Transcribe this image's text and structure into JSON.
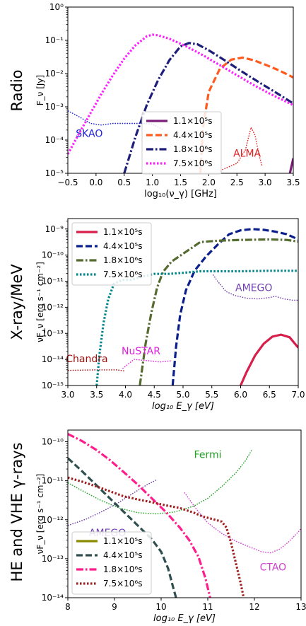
{
  "chart_data": [
    {
      "type": "line",
      "panel_label": "Radio",
      "xlabel": "log₁₀(ν_γ) [GHz]",
      "ylabel": "F_ν [Jy]",
      "xlim": [
        -0.5,
        3.5
      ],
      "ylim_log10": [
        -5,
        0
      ],
      "yscale": "log",
      "x_ticks": [
        -0.5,
        0.0,
        0.5,
        1.0,
        1.5,
        2.0,
        2.5,
        3.0,
        3.5
      ],
      "x_tick_labels": [
        "−0.5",
        "0.0",
        "0.5",
        "1.0",
        "1.5",
        "2.0",
        "2.5",
        "3.0",
        "3.5"
      ],
      "y_ticks_log10": [
        -5,
        -4,
        -3,
        -2,
        -1,
        0
      ],
      "y_tick_labels": [
        "10⁻⁵",
        "10⁻⁴",
        "10⁻³",
        "10⁻²",
        "10⁻¹",
        "10⁰"
      ],
      "legend_placement": "lower-center",
      "series": [
        {
          "name": "1.1×10⁵s",
          "color": "#7b1e7a",
          "dash": "solid",
          "points": [
            [
              3.44,
              -5.0
            ],
            [
              3.5,
              -4.55
            ]
          ]
        },
        {
          "name": "4.4×10⁵s",
          "color": "#ff5a1f",
          "dash": "dashed",
          "points": [
            [
              1.85,
              -5.0
            ],
            [
              1.9,
              -3.6
            ],
            [
              2.0,
              -2.55
            ],
            [
              2.2,
              -1.85
            ],
            [
              2.4,
              -1.58
            ],
            [
              2.6,
              -1.52
            ],
            [
              2.8,
              -1.6
            ],
            [
              3.0,
              -1.73
            ],
            [
              3.2,
              -1.87
            ],
            [
              3.4,
              -2.03
            ],
            [
              3.5,
              -2.12
            ]
          ]
        },
        {
          "name": "1.8×10⁶s",
          "color": "#1e1e7a",
          "dash": "dashdot",
          "points": [
            [
              0.5,
              -5.0
            ],
            [
              0.7,
              -3.9
            ],
            [
              0.9,
              -2.95
            ],
            [
              1.1,
              -2.2
            ],
            [
              1.3,
              -1.6
            ],
            [
              1.5,
              -1.18
            ],
            [
              1.65,
              -1.08
            ],
            [
              1.8,
              -1.12
            ],
            [
              2.0,
              -1.3
            ],
            [
              2.3,
              -1.62
            ],
            [
              2.6,
              -1.95
            ],
            [
              2.9,
              -2.27
            ],
            [
              3.2,
              -2.58
            ],
            [
              3.5,
              -2.9
            ]
          ]
        },
        {
          "name": "7.5×10⁶s",
          "color": "#ff1eff",
          "dash": "dotted",
          "points": [
            [
              -0.5,
              -4.42
            ],
            [
              -0.3,
              -3.8
            ],
            [
              -0.1,
              -3.2
            ],
            [
              0.1,
              -2.6
            ],
            [
              0.3,
              -2.05
            ],
            [
              0.5,
              -1.55
            ],
            [
              0.7,
              -1.15
            ],
            [
              0.9,
              -0.88
            ],
            [
              1.0,
              -0.83
            ],
            [
              1.1,
              -0.85
            ],
            [
              1.3,
              -0.95
            ],
            [
              1.6,
              -1.18
            ],
            [
              1.9,
              -1.45
            ],
            [
              2.2,
              -1.75
            ],
            [
              2.5,
              -2.05
            ],
            [
              2.8,
              -2.35
            ],
            [
              3.1,
              -2.62
            ],
            [
              3.5,
              -2.95
            ]
          ]
        }
      ],
      "instruments": [
        {
          "name": "SKAO",
          "color": "#2020e0",
          "points": [
            [
              -0.5,
              -3.12
            ],
            [
              -0.3,
              -3.3
            ],
            [
              -0.1,
              -3.5
            ],
            [
              0.1,
              -3.55
            ],
            [
              0.3,
              -3.5
            ],
            [
              0.5,
              -3.5
            ],
            [
              0.8,
              -3.5
            ],
            [
              1.0,
              -3.52
            ],
            [
              1.2,
              -3.7
            ]
          ],
          "label_pos": [
            -0.12,
            -3.9
          ]
        },
        {
          "name": "ALMA",
          "color": "#e02020",
          "points": [
            [
              2.2,
              -4.92
            ],
            [
              2.5,
              -4.7
            ],
            [
              2.65,
              -4.3
            ],
            [
              2.75,
              -3.62
            ],
            [
              2.82,
              -3.85
            ],
            [
              2.9,
              -4.5
            ],
            [
              2.95,
              -4.8
            ]
          ],
          "label_pos": [
            2.68,
            -4.5
          ]
        }
      ]
    },
    {
      "type": "line",
      "panel_label": "X-ray/MeV",
      "xlabel": "log₁₀ E_γ [eV]",
      "ylabel": "νF_ν [erg s⁻¹ cm⁻²]",
      "xlim": [
        3.0,
        7.0
      ],
      "ylim_log10": [
        -15,
        -8.6
      ],
      "yscale": "log",
      "x_ticks": [
        3.0,
        3.5,
        4.0,
        4.5,
        5.0,
        5.5,
        6.0,
        6.5,
        7.0
      ],
      "x_tick_labels": [
        "3.0",
        "3.5",
        "4.0",
        "4.5",
        "5.0",
        "5.5",
        "6.0",
        "6.5",
        "7.0"
      ],
      "y_ticks_log10": [
        -15,
        -14,
        -13,
        -12,
        -11,
        -10,
        -9
      ],
      "y_tick_labels": [
        "10⁻¹⁵",
        "10⁻¹⁴",
        "10⁻¹³",
        "10⁻¹²",
        "10⁻¹¹",
        "10⁻¹⁰",
        "10⁻⁹"
      ],
      "legend_placement": "top-left",
      "series": [
        {
          "name": "1.1×10⁵s",
          "color": "#d81e4a",
          "dash": "solid",
          "points": [
            [
              6.0,
              -15.0
            ],
            [
              6.1,
              -14.5
            ],
            [
              6.25,
              -13.85
            ],
            [
              6.4,
              -13.4
            ],
            [
              6.55,
              -13.13
            ],
            [
              6.7,
              -13.05
            ],
            [
              6.85,
              -13.15
            ],
            [
              7.0,
              -13.55
            ]
          ]
        },
        {
          "name": "4.4×10⁵s",
          "color": "#0a1e8c",
          "dash": "dashed",
          "points": [
            [
              4.82,
              -15.0
            ],
            [
              4.88,
              -13.5
            ],
            [
              4.95,
              -12.3
            ],
            [
              5.05,
              -11.35
            ],
            [
              5.2,
              -10.6
            ],
            [
              5.4,
              -10.05
            ],
            [
              5.6,
              -9.6
            ],
            [
              5.8,
              -9.2
            ],
            [
              6.0,
              -9.05
            ],
            [
              6.2,
              -9.0
            ],
            [
              6.4,
              -9.03
            ],
            [
              6.6,
              -9.1
            ],
            [
              6.8,
              -9.2
            ],
            [
              7.0,
              -9.4
            ]
          ]
        },
        {
          "name": "1.8×10⁶s",
          "color": "#556b2f",
          "dash": "dashdot",
          "points": [
            [
              4.25,
              -15.0
            ],
            [
              4.35,
              -13.4
            ],
            [
              4.45,
              -12.2
            ],
            [
              4.55,
              -11.25
            ],
            [
              4.65,
              -10.65
            ],
            [
              4.8,
              -10.25
            ],
            [
              5.0,
              -9.95
            ],
            [
              5.3,
              -9.5
            ],
            [
              5.6,
              -9.45
            ],
            [
              6.0,
              -9.42
            ],
            [
              6.5,
              -9.4
            ],
            [
              6.8,
              -9.42
            ],
            [
              7.0,
              -9.48
            ]
          ]
        },
        {
          "name": "7.5×10⁶s",
          "color": "#00868b",
          "dash": "dotted",
          "points": [
            [
              3.5,
              -15.0
            ],
            [
              3.55,
              -13.8
            ],
            [
              3.62,
              -12.6
            ],
            [
              3.7,
              -11.7
            ],
            [
              3.8,
              -11.1
            ],
            [
              3.95,
              -10.95
            ],
            [
              4.1,
              -10.95
            ],
            [
              4.3,
              -10.82
            ],
            [
              4.5,
              -10.72
            ],
            [
              4.75,
              -10.72
            ],
            [
              5.0,
              -10.68
            ],
            [
              5.3,
              -10.62
            ],
            [
              5.6,
              -10.62
            ],
            [
              6.0,
              -10.62
            ],
            [
              6.5,
              -10.6
            ],
            [
              7.0,
              -10.6
            ]
          ]
        }
      ],
      "instruments": [
        {
          "name": "AMEGO",
          "color": "#7040b0",
          "points": [
            [
              5.52,
              -10.75
            ],
            [
              5.6,
              -11.0
            ],
            [
              5.75,
              -11.4
            ],
            [
              5.9,
              -11.55
            ],
            [
              6.1,
              -11.65
            ],
            [
              6.3,
              -11.68
            ],
            [
              6.5,
              -11.63
            ],
            [
              6.6,
              -11.58
            ],
            [
              6.75,
              -11.68
            ],
            [
              6.9,
              -11.73
            ],
            [
              7.0,
              -11.73
            ]
          ],
          "label_pos": [
            6.23,
            -11.38
          ]
        },
        {
          "name": "NuSTAR",
          "color": "#e020e0",
          "points": [
            [
              3.95,
              -14.35
            ],
            [
              4.15,
              -14.0
            ],
            [
              4.4,
              -14.05
            ],
            [
              4.6,
              -14.1
            ],
            [
              4.8,
              -14.05
            ]
          ],
          "label_pos": [
            4.27,
            -13.8
          ]
        },
        {
          "name": "Chandra",
          "color": "#a01010",
          "points": [
            [
              3.0,
              -14.42
            ],
            [
              3.5,
              -14.4
            ],
            [
              3.85,
              -14.4
            ],
            [
              4.0,
              -14.45
            ]
          ],
          "label_pos": [
            3.33,
            -14.1
          ]
        }
      ]
    },
    {
      "type": "line",
      "panel_label": "HE and VHE γ-rays",
      "xlabel": "log₁₀ E_γ [eV]",
      "ylabel": "νF_ν [erg s⁻¹ cm⁻²]",
      "xlim": [
        8,
        13
      ],
      "ylim_log10": [
        -14,
        -9.7
      ],
      "yscale": "log",
      "x_ticks": [
        8,
        9,
        10,
        11,
        12,
        13
      ],
      "x_tick_labels": [
        "8",
        "9",
        "10",
        "11",
        "12",
        "13"
      ],
      "y_ticks_log10": [
        -14,
        -13,
        -12,
        -11,
        -10
      ],
      "y_tick_labels": [
        "10⁻¹⁴",
        "10⁻¹³",
        "10⁻¹²",
        "10⁻¹¹",
        "10⁻¹⁰"
      ],
      "legend_placement": "lower-left",
      "series": [
        {
          "name": "1.1×10⁵s",
          "color": "#8b8b00",
          "dash": "solid",
          "points": []
        },
        {
          "name": "4.4×10⁵s",
          "color": "#2f4f4f",
          "dash": "dashed",
          "points": [
            [
              8.0,
              -10.42
            ],
            [
              8.3,
              -10.75
            ],
            [
              8.6,
              -11.1
            ],
            [
              8.9,
              -11.45
            ],
            [
              9.2,
              -11.8
            ],
            [
              9.5,
              -12.15
            ],
            [
              9.8,
              -12.5
            ],
            [
              10.0,
              -12.82
            ],
            [
              10.15,
              -13.25
            ],
            [
              10.25,
              -13.7
            ],
            [
              10.32,
              -14.0
            ]
          ]
        },
        {
          "name": "1.8×10⁶s",
          "color": "#ff1e8c",
          "dash": "dashdot",
          "points": [
            [
              8.0,
              -9.8
            ],
            [
              8.3,
              -9.98
            ],
            [
              8.6,
              -10.2
            ],
            [
              8.9,
              -10.47
            ],
            [
              9.2,
              -10.78
            ],
            [
              9.5,
              -11.1
            ],
            [
              9.8,
              -11.45
            ],
            [
              10.1,
              -11.8
            ],
            [
              10.4,
              -12.2
            ],
            [
              10.6,
              -12.52
            ],
            [
              10.8,
              -12.95
            ],
            [
              10.95,
              -13.5
            ],
            [
              11.05,
              -14.0
            ]
          ]
        },
        {
          "name": "7.5×10⁶s",
          "color": "#a01e1e",
          "dash": "dotted",
          "points": [
            [
              8.0,
              -10.92
            ],
            [
              8.3,
              -11.02
            ],
            [
              8.6,
              -11.14
            ],
            [
              8.9,
              -11.27
            ],
            [
              9.2,
              -11.4
            ],
            [
              9.5,
              -11.48
            ],
            [
              9.8,
              -11.55
            ],
            [
              10.1,
              -11.63
            ],
            [
              10.4,
              -11.7
            ],
            [
              10.7,
              -11.82
            ],
            [
              10.9,
              -11.92
            ],
            [
              11.1,
              -11.98
            ],
            [
              11.3,
              -12.05
            ],
            [
              11.4,
              -12.2
            ],
            [
              11.5,
              -12.6
            ],
            [
              11.6,
              -13.1
            ],
            [
              11.7,
              -13.6
            ],
            [
              11.77,
              -14.0
            ]
          ]
        }
      ],
      "instruments": [
        {
          "name": "Fermi",
          "color": "#20a020",
          "points": [
            [
              8.0,
              -11.05
            ],
            [
              8.3,
              -11.25
            ],
            [
              8.7,
              -11.5
            ],
            [
              9.1,
              -11.7
            ],
            [
              9.5,
              -11.82
            ],
            [
              9.9,
              -11.85
            ],
            [
              10.3,
              -11.8
            ],
            [
              10.7,
              -11.65
            ],
            [
              11.0,
              -11.45
            ],
            [
              11.3,
              -11.15
            ],
            [
              11.6,
              -10.8
            ],
            [
              11.8,
              -10.5
            ],
            [
              11.95,
              -10.2
            ]
          ],
          "label_pos": [
            11.0,
            -10.42
          ]
        },
        {
          "name": "AMEGO",
          "color": "#7040b0",
          "points": [
            [
              8.0,
              -12.15
            ],
            [
              8.4,
              -11.98
            ],
            [
              8.8,
              -11.75
            ],
            [
              9.1,
              -11.55
            ],
            [
              9.4,
              -11.32
            ],
            [
              9.7,
              -11.1
            ],
            [
              9.9,
              -10.98
            ]
          ],
          "label_pos": [
            8.85,
            -12.42
          ]
        },
        {
          "name": "CTAO",
          "color": "#d040d0",
          "points": [
            [
              10.5,
              -11.3
            ],
            [
              10.75,
              -11.72
            ],
            [
              11.0,
              -12.08
            ],
            [
              11.3,
              -12.35
            ],
            [
              11.6,
              -12.55
            ],
            [
              11.9,
              -12.7
            ],
            [
              12.15,
              -12.82
            ],
            [
              12.35,
              -12.85
            ],
            [
              12.55,
              -12.75
            ],
            [
              12.75,
              -12.55
            ],
            [
              12.95,
              -12.3
            ],
            [
              13.0,
              -12.22
            ]
          ],
          "label_pos": [
            12.4,
            -13.3
          ]
        }
      ]
    }
  ]
}
